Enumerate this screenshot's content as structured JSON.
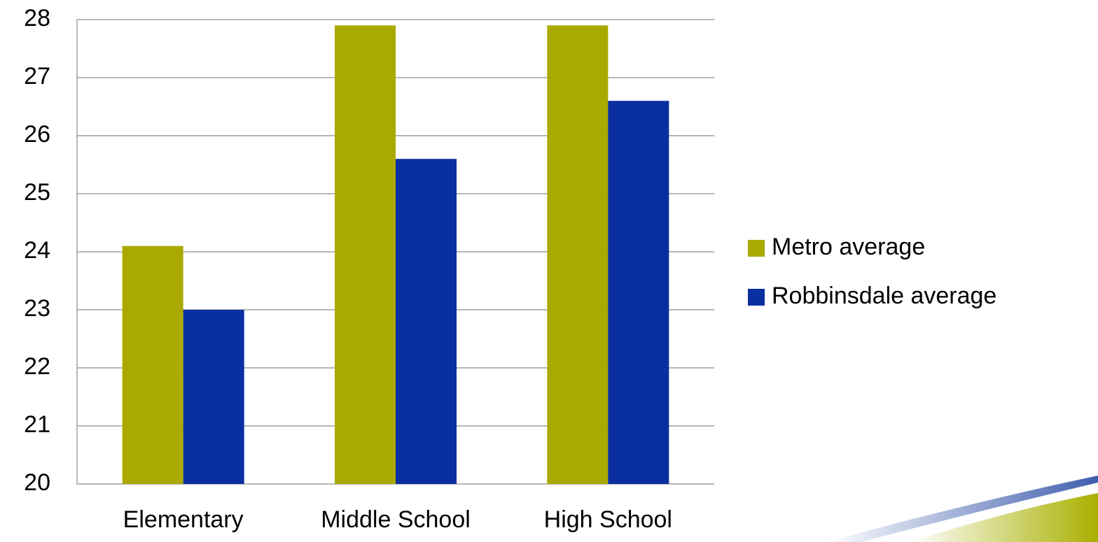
{
  "chart_data": {
    "type": "bar",
    "categories": [
      "Elementary",
      "Middle School",
      "High School"
    ],
    "series": [
      {
        "name": "Metro average",
        "color": "#a9a900",
        "values": [
          24.1,
          27.9,
          27.9
        ]
      },
      {
        "name": "Robbinsdale average",
        "color": "#0a2fa0",
        "values": [
          23.0,
          25.6,
          26.6
        ]
      }
    ],
    "ylim": [
      20,
      28
    ],
    "yticks": [
      20,
      21,
      22,
      23,
      24,
      25,
      26,
      27,
      28
    ],
    "grid": true
  }
}
